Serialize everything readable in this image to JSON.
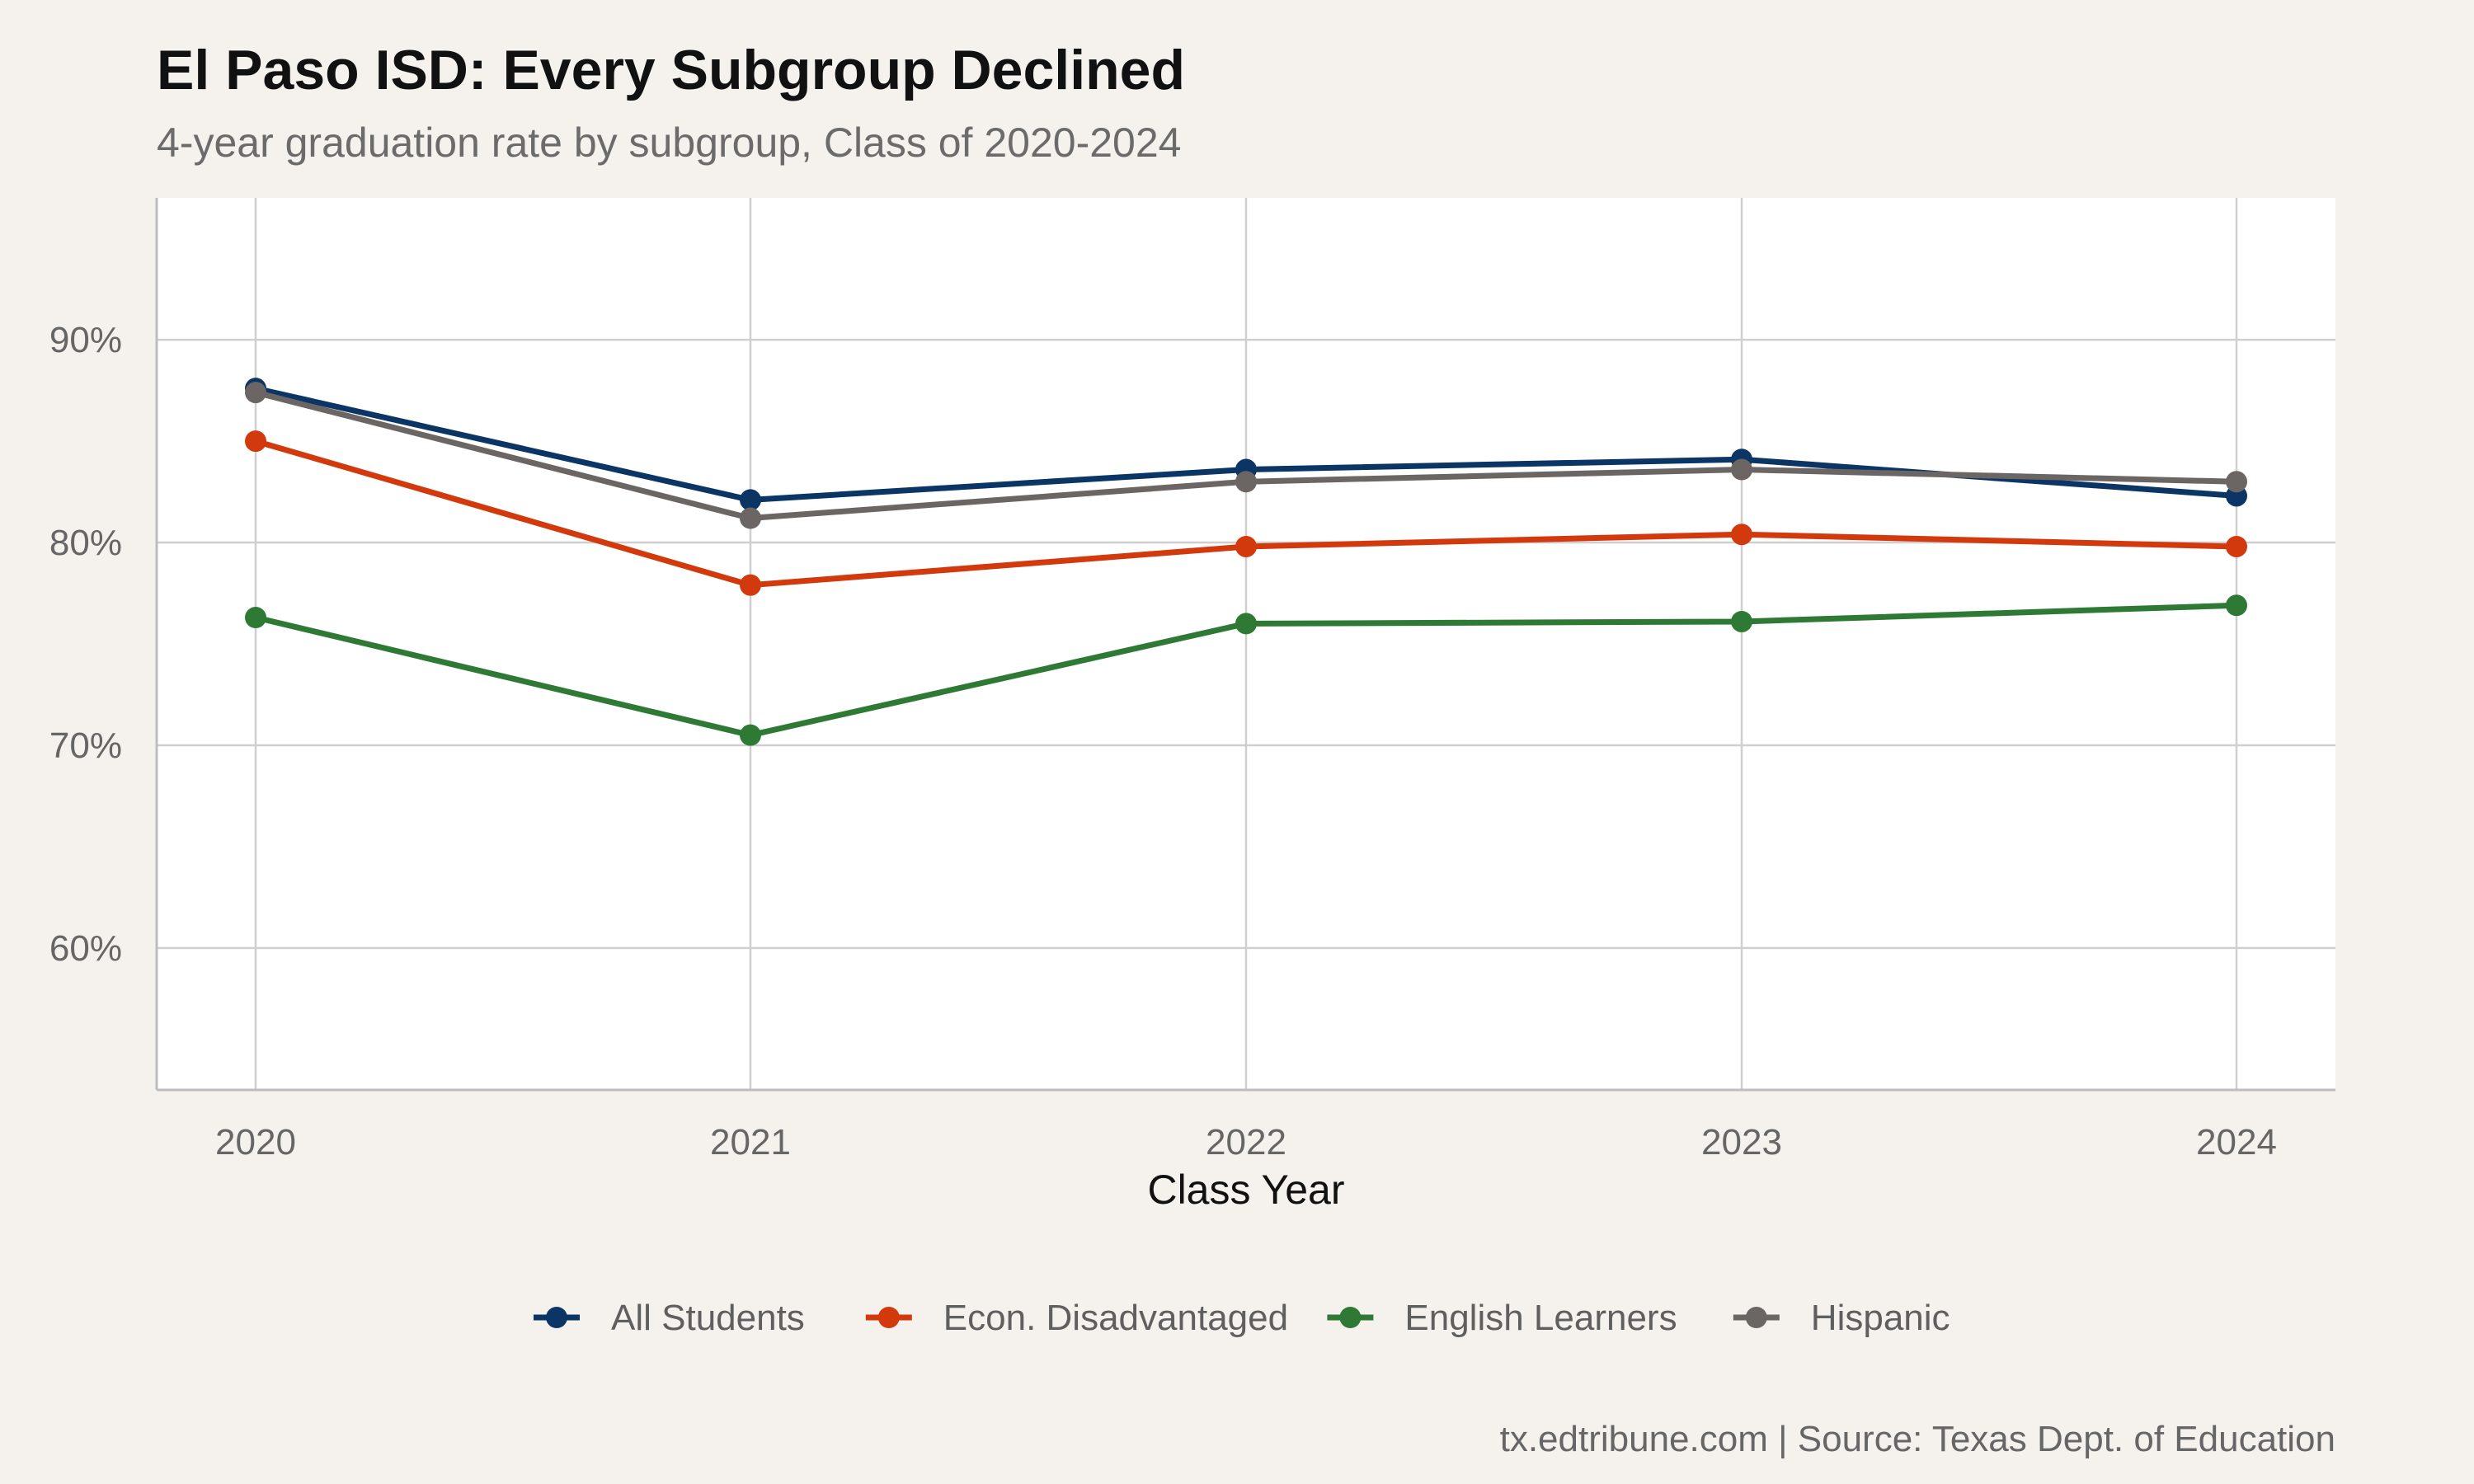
{
  "chart_data": {
    "type": "line",
    "title": "El Paso ISD: Every Subgroup Declined",
    "subtitle": "4-year graduation rate by subgroup, Class of 2020-2024",
    "xlabel": "Class Year",
    "ylabel": "",
    "x": [
      "2020",
      "2021",
      "2022",
      "2023",
      "2024"
    ],
    "ylim": [
      53,
      97
    ],
    "yticks": [
      60,
      70,
      80,
      90
    ],
    "ytick_labels": [
      "60%",
      "70%",
      "80%",
      "90%"
    ],
    "grid": true,
    "legend_position": "bottom",
    "series": [
      {
        "name": "All Students",
        "color": "#0b3564",
        "values": [
          87.6,
          82.1,
          83.6,
          84.1,
          82.3
        ]
      },
      {
        "name": "Econ. Disadvantaged",
        "color": "#d23a0e",
        "values": [
          85.0,
          77.9,
          79.8,
          80.4,
          79.8
        ]
      },
      {
        "name": "English Learners",
        "color": "#2e7a35",
        "values": [
          76.3,
          70.5,
          76.0,
          76.1,
          76.9
        ]
      },
      {
        "name": "Hispanic",
        "color": "#6b6663",
        "values": [
          87.4,
          81.2,
          83.0,
          83.6,
          83.0
        ]
      }
    ],
    "caption": "tx.edtribune.com | Source: Texas Dept. of Education"
  }
}
